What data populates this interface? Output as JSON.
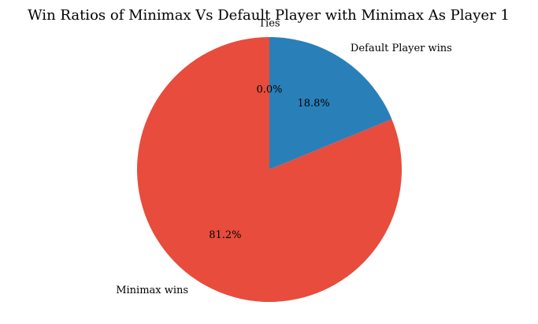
{
  "chart_data": {
    "type": "pie",
    "title": "Win Ratios of Minimax Vs Default Player with Minimax As Player 1",
    "slices": [
      {
        "label": "Ties",
        "value": 0.0,
        "pct_label": "0.0%",
        "color": "#ffffff"
      },
      {
        "label": "Default Player wins",
        "value": 18.8,
        "pct_label": "18.8%",
        "color": "#2980b9"
      },
      {
        "label": "Minimax wins",
        "value": 81.2,
        "pct_label": "81.2%",
        "color": "#e74c3c"
      }
    ],
    "start_angle_deg": 90,
    "direction": "clockwise",
    "legend": "none"
  }
}
